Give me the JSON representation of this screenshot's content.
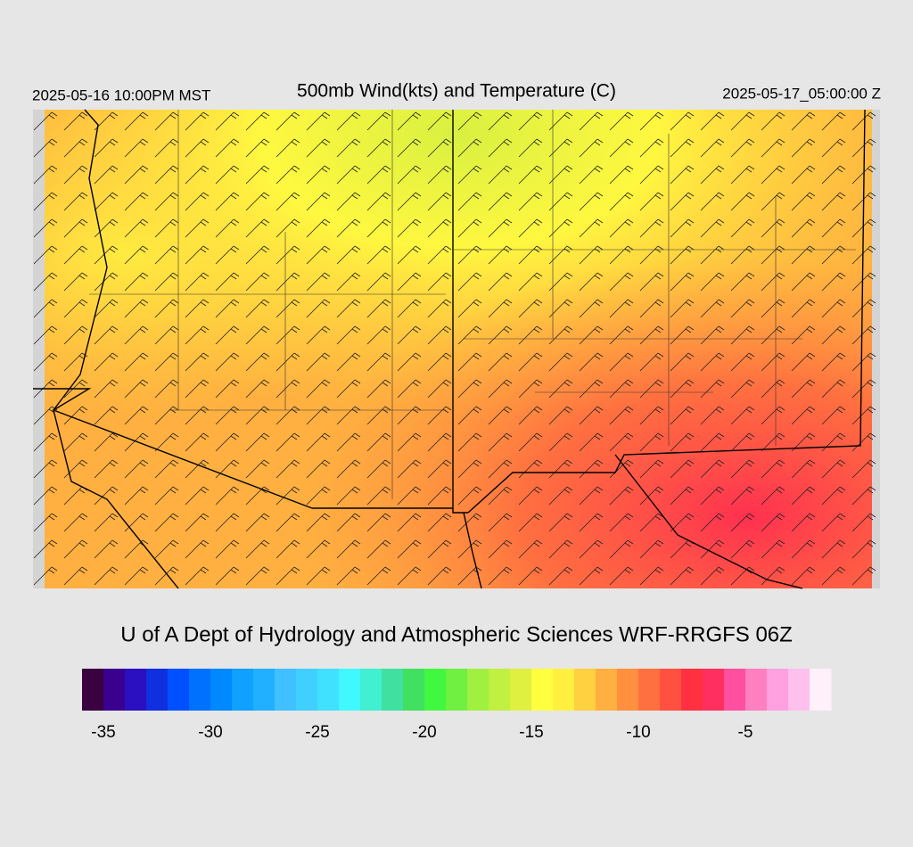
{
  "header": {
    "title": "500mb Wind(kts) and Temperature (C)",
    "local_time": "2025-05-16 10:00PM MST",
    "valid_time": "2025-05-17_05:00:00 Z"
  },
  "footer": {
    "credit": "U of A Dept of Hydrology and Atmospheric Sciences WRF-RRGFS 06Z"
  },
  "colorbar": {
    "range": [
      -36,
      -1
    ],
    "ticks": [
      -35,
      -30,
      -25,
      -20,
      -15,
      -10,
      -5
    ],
    "colors": [
      "#3a0040",
      "#3a0090",
      "#2a10c0",
      "#1030e0",
      "#0050ff",
      "#0070ff",
      "#0088ff",
      "#10a0ff",
      "#20b0ff",
      "#40c0ff",
      "#40d0ff",
      "#40e0ff",
      "#40f8ff",
      "#40f0d0",
      "#40e0a0",
      "#40e060",
      "#40f840",
      "#70f040",
      "#a0f040",
      "#c0f040",
      "#e0f040",
      "#ffff40",
      "#fff040",
      "#ffd040",
      "#ffb040",
      "#ff9040",
      "#ff7040",
      "#ff5040",
      "#ff3040",
      "#ff3060",
      "#ff50a0",
      "#ff80c0",
      "#ffa0e0",
      "#ffc0ee",
      "#fff0fa"
    ]
  }
}
